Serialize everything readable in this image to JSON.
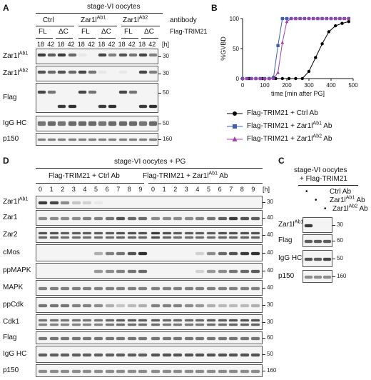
{
  "panels": {
    "a": {
      "letter": "A",
      "title": "stage-VI oocytes",
      "antibody_label": "antibody",
      "groups": [
        {
          "name": "Ctrl",
          "sup": ""
        },
        {
          "name": "Zar1l",
          "sup": "Ab1"
        },
        {
          "name": "Zar1l",
          "sup": "Ab2"
        }
      ],
      "construct_label": "Flag-TRIM21",
      "constructs": [
        "FL",
        "ΔC",
        "FL",
        "ΔC",
        "FL",
        "ΔC"
      ],
      "time_unit": "[h]",
      "times": [
        "18",
        "42",
        "18",
        "42",
        "18",
        "42",
        "18",
        "42",
        "18",
        "42",
        "18",
        "42"
      ],
      "rows": [
        {
          "name": "Zar1l",
          "sup": "Ab1",
          "mw": "30"
        },
        {
          "name": "Zar1l",
          "sup": "Ab2",
          "mw": "30"
        },
        {
          "name": "Flag",
          "sup": "",
          "mw": "50"
        },
        {
          "name": "IgG HC",
          "sup": "",
          "mw": "50"
        },
        {
          "name": "p150",
          "sup": "",
          "mw": "160"
        }
      ]
    },
    "b": {
      "letter": "B",
      "legend": [
        {
          "text": "Flag-TRIM21 + Ctrl Ab",
          "sup": "",
          "suffix": "",
          "color": "#000000",
          "marker": "circle"
        },
        {
          "text": "Flag-TRIM21 + Zar1l",
          "sup": "Ab1",
          "suffix": " Ab",
          "color": "#3f5fa8",
          "marker": "square"
        },
        {
          "text": "Flag-TRIM21 + Zar1l",
          "sup": "Ab2",
          "suffix": " Ab",
          "color": "#a040a8",
          "marker": "triangle"
        }
      ]
    },
    "c": {
      "letter": "C",
      "title_line1": "stage-VI oocytes",
      "title_line2": "+ Flag-TRIM21",
      "conditions": [
        {
          "text": "Ctrl Ab",
          "sup": ""
        },
        {
          "text": "Zar1l",
          "sup": "Ab1",
          "suffix": " Ab"
        },
        {
          "text": "Zar1l",
          "sup": "Ab2",
          "suffix": " Ab"
        }
      ],
      "dot": "•",
      "rows": [
        {
          "name": "Zar1l",
          "sup": "Ab1",
          "mw": "30"
        },
        {
          "name": "Flag",
          "sup": "",
          "mw": "60"
        },
        {
          "name": "IgG HC",
          "sup": "",
          "mw": "50"
        },
        {
          "name": "p150",
          "sup": "",
          "mw": "160"
        }
      ]
    },
    "d": {
      "letter": "D",
      "title": "stage-VI oocytes + PG",
      "group1": {
        "text": "Flag-TRIM21 + Ctrl Ab",
        "sup": ""
      },
      "group2": {
        "text": "Flag-TRIM21 + Zar1l",
        "sup": "Ab1",
        "suffix": " Ab"
      },
      "times": [
        "0",
        "1",
        "2",
        "3",
        "4",
        "5",
        "6",
        "7",
        "8",
        "9"
      ],
      "time_unit": "[h]",
      "rows": [
        {
          "name": "Zar1l",
          "sup": "Ab1",
          "mw": "30"
        },
        {
          "name": "Zar1",
          "sup": "",
          "mw": "40"
        },
        {
          "name": "Zar2",
          "sup": "",
          "mw": "40"
        },
        {
          "name": "cMos",
          "sup": "",
          "mw": "40"
        },
        {
          "name": "ppMAPK",
          "sup": "",
          "mw": "40"
        },
        {
          "name": "MAPK",
          "sup": "",
          "mw": "40"
        },
        {
          "name": "ppCdk",
          "sup": "",
          "mw": "30"
        },
        {
          "name": "Cdk1",
          "sup": "",
          "mw": "30"
        },
        {
          "name": "Flag",
          "sup": "",
          "mw": "60"
        },
        {
          "name": "IgG HC",
          "sup": "",
          "mw": "50"
        },
        {
          "name": "p150",
          "sup": "",
          "mw": "160"
        }
      ]
    }
  },
  "chart_data": {
    "type": "line",
    "xlabel": "time [min after PG]",
    "ylabel": "%GVBD",
    "xlim": [
      0,
      500
    ],
    "ylim": [
      0,
      100
    ],
    "xticks": [
      0,
      100,
      200,
      300,
      400,
      500
    ],
    "yticks": [
      0,
      50,
      100
    ],
    "grid": false,
    "legend_position": "below",
    "series": [
      {
        "name": "Flag-TRIM21 + Ctrl Ab",
        "color": "#000000",
        "marker": "circle",
        "x": [
          0,
          30,
          60,
          90,
          120,
          150,
          180,
          210,
          240,
          270,
          300,
          330,
          360,
          390,
          420,
          450,
          480
        ],
        "y": [
          0,
          0,
          0,
          0,
          0,
          0,
          0,
          0,
          0,
          0,
          12,
          35,
          58,
          78,
          88,
          92,
          95
        ]
      },
      {
        "name": "Flag-TRIM21 + Zar1lAb1 Ab",
        "color": "#3f5fa8",
        "marker": "square",
        "x": [
          0,
          20,
          40,
          60,
          80,
          100,
          120,
          140,
          160,
          180,
          200,
          220,
          240,
          260,
          280,
          300,
          320,
          340,
          360,
          380,
          400,
          420,
          440,
          460,
          480
        ],
        "y": [
          0,
          0,
          0,
          0,
          0,
          0,
          0,
          2,
          55,
          100,
          100,
          100,
          100,
          100,
          100,
          100,
          100,
          100,
          100,
          100,
          100,
          100,
          100,
          100,
          100
        ]
      },
      {
        "name": "Flag-TRIM21 + Zar1lAb2 Ab",
        "color": "#a040a8",
        "marker": "triangle",
        "x": [
          0,
          20,
          40,
          60,
          80,
          100,
          120,
          140,
          160,
          180,
          200,
          220,
          240,
          260,
          280,
          300,
          320,
          340,
          360,
          380,
          400,
          420,
          440,
          460,
          480
        ],
        "y": [
          0,
          0,
          0,
          0,
          0,
          0,
          0,
          0,
          10,
          60,
          95,
          100,
          100,
          100,
          100,
          100,
          100,
          100,
          100,
          100,
          100,
          100,
          100,
          100,
          100
        ]
      }
    ]
  }
}
